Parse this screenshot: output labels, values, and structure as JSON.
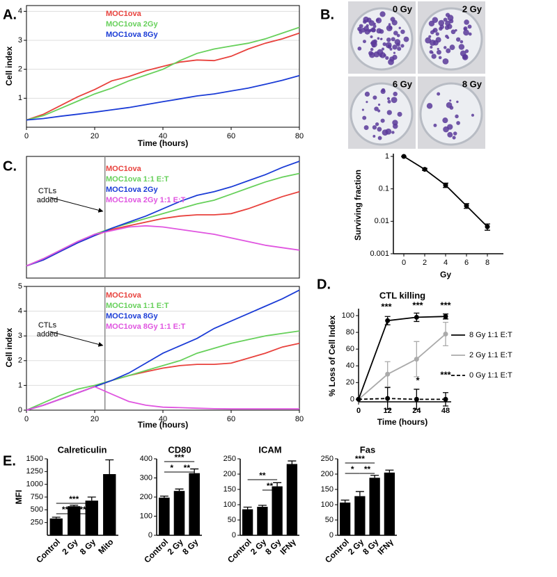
{
  "chart_data": [
    {
      "type": "line",
      "panel": "A.",
      "xlabel": "Time (hours)",
      "ylabel": "Cell index",
      "x": [
        0,
        5,
        10,
        15,
        20,
        25,
        30,
        35,
        40,
        45,
        50,
        55,
        60,
        65,
        70,
        75,
        80
      ],
      "xlim": [
        0,
        80
      ],
      "ylim": [
        0,
        4.2
      ],
      "xticks": [
        0,
        20,
        40,
        60,
        80
      ],
      "yticks": [
        1,
        2,
        3,
        4
      ],
      "grid": true,
      "legend": "upper left",
      "series": [
        {
          "name": "MOC1ova",
          "color": "#e8413c",
          "values": [
            0.25,
            0.45,
            0.75,
            1.05,
            1.3,
            1.6,
            1.75,
            1.95,
            2.1,
            2.25,
            2.32,
            2.3,
            2.45,
            2.7,
            2.9,
            3.05,
            3.25
          ]
        },
        {
          "name": "MOC1ova 2Gy",
          "color": "#66d05a",
          "values": [
            0.25,
            0.4,
            0.65,
            0.9,
            1.15,
            1.35,
            1.6,
            1.8,
            2.0,
            2.3,
            2.55,
            2.7,
            2.8,
            2.9,
            3.05,
            3.25,
            3.45
          ]
        },
        {
          "name": "MOC1ova 8Gy",
          "color": "#1a3bd6",
          "values": [
            0.25,
            0.3,
            0.38,
            0.45,
            0.52,
            0.6,
            0.68,
            0.78,
            0.88,
            0.98,
            1.08,
            1.15,
            1.25,
            1.35,
            1.48,
            1.62,
            1.78
          ]
        }
      ]
    },
    {
      "type": "line",
      "panel": "B.",
      "plate_labels": [
        "0 Gy",
        "2 Gy",
        "6 Gy",
        "8 Gy"
      ],
      "xlabel": "Gy",
      "ylabel": "Surviving fraction",
      "x": [
        0,
        2,
        4,
        6,
        8
      ],
      "xlim": [
        -1,
        9
      ],
      "ylim": [
        0.001,
        1
      ],
      "log_y": true,
      "markers": true,
      "xticks": [
        0,
        2,
        4,
        6,
        8
      ],
      "yticks": [
        0.001,
        0.01,
        0.1,
        1
      ],
      "series": [
        {
          "color": "#000000",
          "values": [
            1,
            0.4,
            0.13,
            0.03,
            0.0068
          ],
          "errors": [
            0,
            0.03,
            0.02,
            0.005,
            0.0015
          ]
        }
      ]
    },
    {
      "type": "line",
      "panel": "C.",
      "annotation": "CTLs added",
      "vline": 23,
      "x": [
        0,
        5,
        10,
        15,
        20,
        25,
        30,
        35,
        40,
        45,
        50,
        55,
        60,
        65,
        70,
        75,
        80
      ],
      "xlim": [
        0,
        80
      ],
      "ylim": [
        0,
        5
      ],
      "legend": "upper left",
      "series": [
        {
          "name": "MOC1ova",
          "color": "#e8413c",
          "values": [
            0.5,
            0.75,
            1.1,
            1.45,
            1.75,
            2.0,
            2.15,
            2.3,
            2.45,
            2.55,
            2.6,
            2.6,
            2.65,
            2.85,
            3.1,
            3.35,
            3.55
          ]
        },
        {
          "name": "MOC1ova 1:1 E:T",
          "color": "#66d05a",
          "values": [
            0.5,
            0.8,
            1.15,
            1.5,
            1.8,
            2.05,
            2.25,
            2.45,
            2.65,
            2.85,
            3.05,
            3.2,
            3.45,
            3.7,
            3.95,
            4.15,
            4.3
          ]
        },
        {
          "name": "MOC1ova 2Gy",
          "color": "#1a3bd6",
          "values": [
            0.5,
            0.75,
            1.1,
            1.45,
            1.75,
            2.05,
            2.3,
            2.55,
            2.85,
            3.15,
            3.4,
            3.55,
            3.75,
            4.0,
            4.25,
            4.55,
            4.8
          ]
        },
        {
          "name": "MOC1ova 2Gy 1:1 E:T",
          "color": "#e055e0",
          "values": [
            0.5,
            0.8,
            1.15,
            1.5,
            1.8,
            1.95,
            2.1,
            2.15,
            2.1,
            2.0,
            1.9,
            1.8,
            1.65,
            1.5,
            1.35,
            1.25,
            1.15
          ]
        }
      ]
    },
    {
      "type": "line",
      "annotation": "CTLs added",
      "vline": 23,
      "xlabel": "Time (hours)",
      "ylabel": "Cell index",
      "x": [
        0,
        5,
        10,
        15,
        20,
        25,
        30,
        35,
        40,
        45,
        50,
        55,
        60,
        65,
        70,
        75,
        80
      ],
      "xlim": [
        0,
        80
      ],
      "ylim": [
        0,
        5
      ],
      "xticks": [
        0,
        20,
        40,
        60,
        80
      ],
      "yticks": [
        0,
        1,
        2,
        3,
        4,
        5
      ],
      "grid": true,
      "legend": "upper left",
      "series": [
        {
          "name": "MOC1ova",
          "color": "#e8413c",
          "values": [
            0,
            0.2,
            0.45,
            0.7,
            0.95,
            1.2,
            1.4,
            1.55,
            1.7,
            1.8,
            1.85,
            1.85,
            1.9,
            2.1,
            2.3,
            2.55,
            2.7
          ]
        },
        {
          "name": "MOC1ova 1:1 E:T",
          "color": "#66d05a",
          "values": [
            0,
            0.3,
            0.6,
            0.85,
            1.0,
            1.2,
            1.4,
            1.6,
            1.8,
            2.0,
            2.3,
            2.5,
            2.7,
            2.85,
            3.0,
            3.1,
            3.2
          ]
        },
        {
          "name": "MOC1ova 8Gy",
          "color": "#1a3bd6",
          "values": [
            0,
            0.2,
            0.45,
            0.7,
            0.95,
            1.2,
            1.5,
            1.9,
            2.3,
            2.6,
            2.9,
            3.3,
            3.6,
            3.9,
            4.2,
            4.5,
            4.85
          ]
        },
        {
          "name": "MOC1ova 8Gy 1:1 E:T",
          "color": "#e055e0",
          "values": [
            0,
            0.2,
            0.45,
            0.7,
            0.95,
            0.65,
            0.35,
            0.2,
            0.12,
            0.1,
            0.08,
            0.06,
            0.05,
            0.05,
            0.05,
            0.05,
            0.05
          ]
        }
      ]
    },
    {
      "type": "line",
      "panel": "D.",
      "title": "CTL killing",
      "xlabel": "Time (hours)",
      "ylabel": "% Loss of Cell Index",
      "categories": [
        "0",
        "12",
        "24",
        "48"
      ],
      "ylim": [
        -3,
        105
      ],
      "yticks": [
        0,
        20,
        40,
        60,
        80,
        100
      ],
      "markers": true,
      "legend": "right",
      "annotations": [
        "***",
        "***",
        "***",
        "***",
        "*"
      ],
      "series": [
        {
          "name": "8 Gy 1:1 E:T",
          "color": "#000000",
          "linestyle": "solid",
          "values": [
            0,
            94,
            98,
            99
          ],
          "errors": [
            0,
            5,
            5,
            3
          ]
        },
        {
          "name": "2 Gy 1:1 E:T",
          "color": "#aaaaaa",
          "linestyle": "solid",
          "values": [
            0,
            30,
            48,
            78
          ],
          "errors": [
            0,
            15,
            21,
            14
          ]
        },
        {
          "name": "0 Gy 1:1 E:T",
          "color": "#000000",
          "linestyle": "dashed",
          "values": [
            0,
            1,
            0,
            0
          ],
          "errors": [
            0,
            13,
            12,
            8
          ]
        }
      ]
    },
    {
      "type": "bar",
      "panel": "E.",
      "title": "Calreticulin",
      "ylabel": "MFI",
      "categories": [
        "Control",
        "2 Gy",
        "8 Gy",
        "Mito"
      ],
      "values": [
        330,
        570,
        680,
        1200
      ],
      "errors": [
        25,
        20,
        70,
        280
      ],
      "ylim": [
        0,
        1500
      ],
      "yticks": [
        250,
        500,
        750,
        1000,
        1250,
        1500
      ],
      "color": "#000000",
      "significance": [
        "***",
        "**",
        "**"
      ]
    },
    {
      "type": "bar",
      "title": "CD80",
      "categories": [
        "Control",
        "2 Gy",
        "8 Gy"
      ],
      "values": [
        197,
        232,
        325
      ],
      "errors": [
        8,
        10,
        22
      ],
      "ylim": [
        0,
        400
      ],
      "yticks": [
        0,
        100,
        200,
        300,
        400
      ],
      "color": "#000000",
      "significance": [
        "***",
        "*",
        "**"
      ]
    },
    {
      "type": "bar",
      "title": "ICAM",
      "categories": [
        "Control",
        "2 Gy",
        "8 Gy",
        "IFNγ"
      ],
      "values": [
        85,
        93,
        160,
        233
      ],
      "errors": [
        7,
        5,
        12,
        10
      ],
      "ylim": [
        0,
        250
      ],
      "yticks": [
        0,
        50,
        100,
        150,
        200,
        250
      ],
      "color": "#000000",
      "significance": [
        "**",
        "**"
      ]
    },
    {
      "type": "bar",
      "title": "Fas",
      "categories": [
        "Control",
        "2 Gy",
        "8 Gy",
        "IFNγ"
      ],
      "values": [
        107,
        128,
        188,
        205
      ],
      "errors": [
        8,
        15,
        8,
        8
      ],
      "ylim": [
        0,
        250
      ],
      "yticks": [
        0,
        50,
        100,
        150,
        200,
        250
      ],
      "color": "#000000",
      "significance": [
        "***",
        "*",
        "**"
      ]
    }
  ]
}
